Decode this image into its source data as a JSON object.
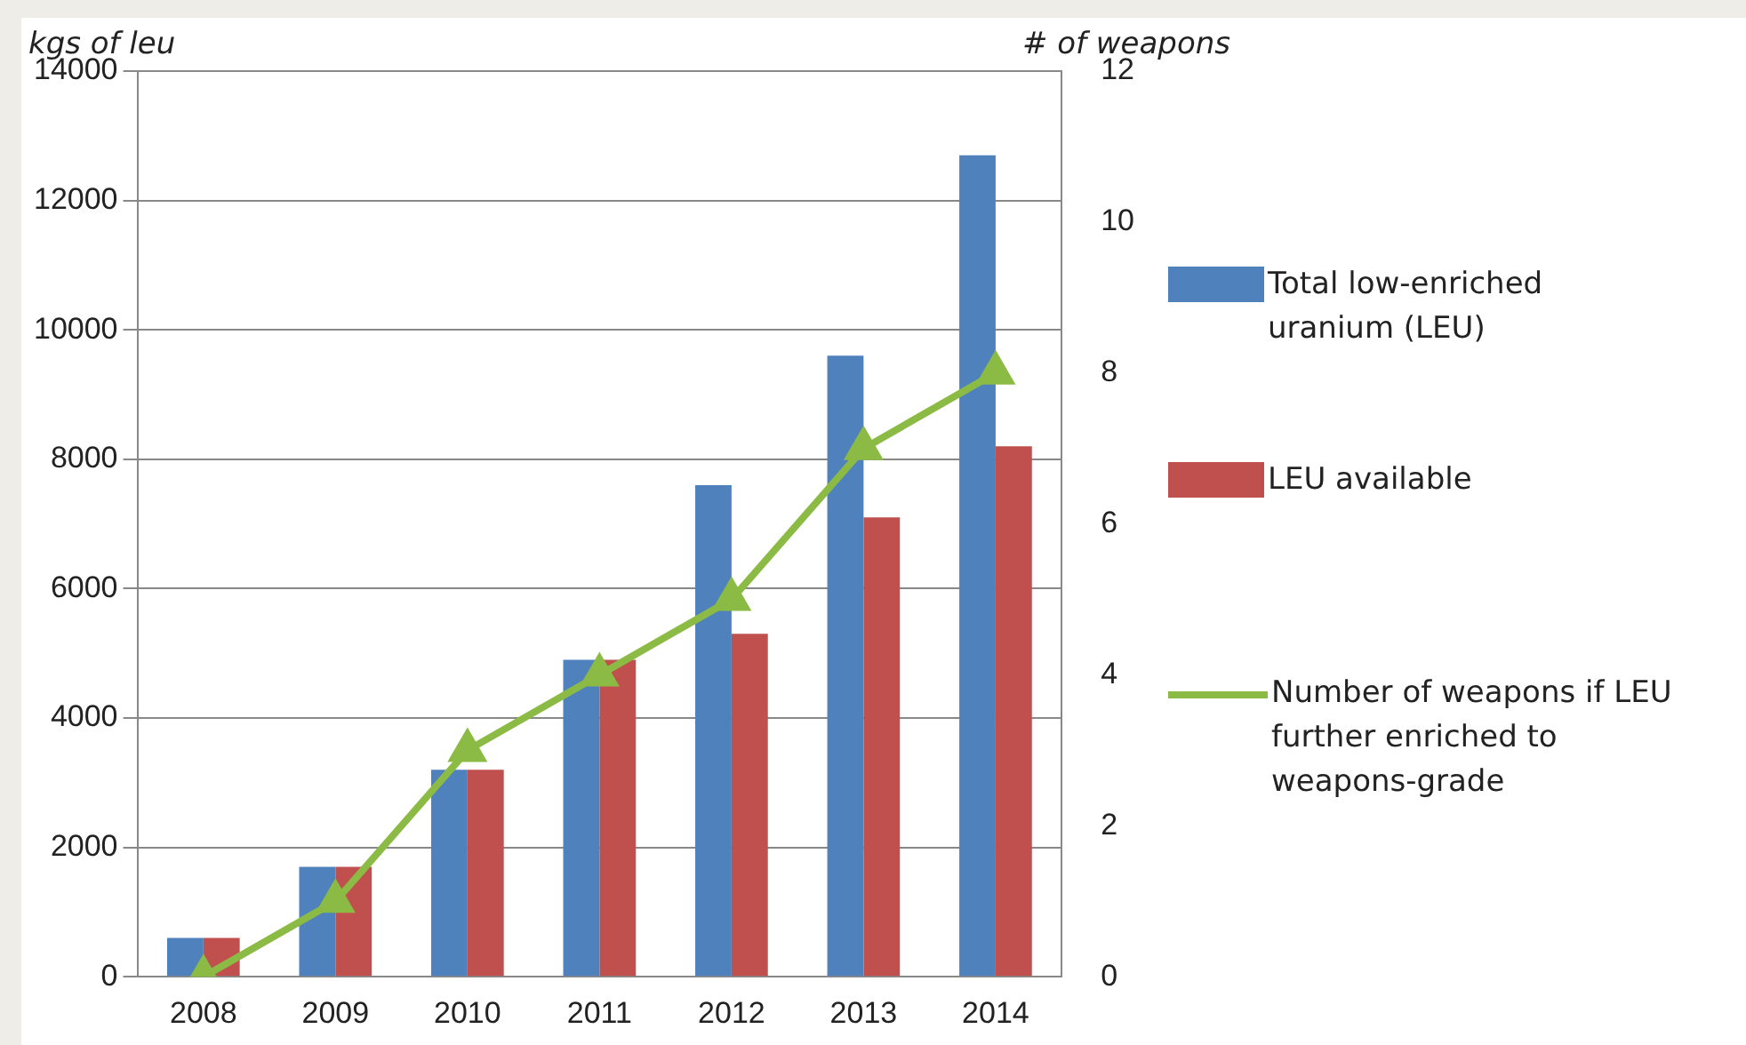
{
  "chart_data": {
    "type": "bar",
    "ylabel": "kgs of leu",
    "y2label": "# of weapons",
    "categories": [
      "2008",
      "2009",
      "2010",
      "2011",
      "2012",
      "2013",
      "2014"
    ],
    "series": [
      {
        "name": "Total low-enriched uranium (LEU)",
        "color": "#4f81bd",
        "values": [
          600,
          1700,
          3200,
          4900,
          7600,
          9600,
          12700
        ]
      },
      {
        "name": "LEU available",
        "color": "#c0504d",
        "values": [
          600,
          1700,
          3200,
          4900,
          5300,
          7100,
          8200
        ]
      },
      {
        "name": "Number of weapons if LEU further enriched to weapons-grade",
        "type": "line",
        "axis": "y2",
        "color": "#8cbb45",
        "marker": "triangle",
        "values": [
          0,
          1,
          3,
          4,
          5,
          7,
          8
        ]
      }
    ],
    "ylim": [
      0,
      14000
    ],
    "yticks": [
      0,
      2000,
      4000,
      6000,
      8000,
      10000,
      12000,
      14000
    ],
    "y2lim": [
      0,
      12
    ],
    "y2ticks": [
      0,
      2,
      4,
      6,
      8,
      10,
      12
    ],
    "grid": "y",
    "legend": "right"
  }
}
